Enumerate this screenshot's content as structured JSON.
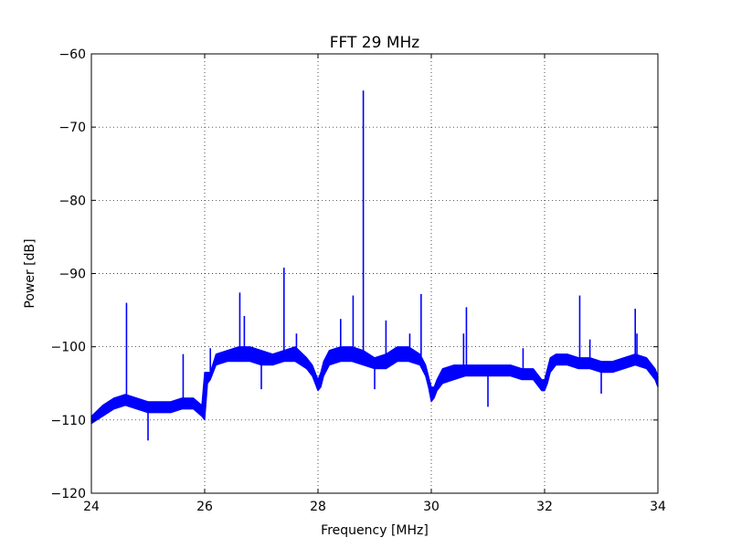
{
  "chart_data": {
    "type": "line",
    "title": "FFT 29 MHz",
    "xlabel": "Frequency [MHz]",
    "ylabel": "Power [dB]",
    "xlim": [
      24,
      34
    ],
    "ylim": [
      -120,
      -60
    ],
    "x_ticks": [
      24,
      26,
      28,
      30,
      32,
      34
    ],
    "x_tick_labels": [
      "24",
      "26",
      "28",
      "30",
      "32",
      "34"
    ],
    "y_ticks": [
      -120,
      -110,
      -100,
      -90,
      -80,
      -70,
      -60
    ],
    "y_tick_labels": [
      "−120",
      "−110",
      "−100",
      "−90",
      "−80",
      "−70",
      "−60"
    ],
    "grid": true,
    "grid_style": "dotted",
    "line_color": "#0000ff",
    "noise_band": {
      "x": [
        24.0,
        24.2,
        24.4,
        24.6,
        24.8,
        25.0,
        25.2,
        25.4,
        25.6,
        25.8,
        25.95,
        26.0,
        26.05,
        26.1,
        26.2,
        26.4,
        26.6,
        26.8,
        27.0,
        27.2,
        27.4,
        27.6,
        27.8,
        27.9,
        28.0,
        28.05,
        28.1,
        28.2,
        28.4,
        28.6,
        28.8,
        29.0,
        29.2,
        29.4,
        29.6,
        29.8,
        29.9,
        29.95,
        30.0,
        30.05,
        30.1,
        30.2,
        30.4,
        30.6,
        30.8,
        31.0,
        31.2,
        31.4,
        31.6,
        31.8,
        31.9,
        31.95,
        32.0,
        32.05,
        32.1,
        32.2,
        32.4,
        32.6,
        32.8,
        33.0,
        33.2,
        33.4,
        33.6,
        33.8,
        33.95,
        34.0
      ],
      "upper": [
        -109.5,
        -108,
        -107,
        -106.5,
        -107,
        -107.5,
        -107.5,
        -107.5,
        -107,
        -107,
        -108,
        -103.5,
        -103.5,
        -103.5,
        -101,
        -100.5,
        -100,
        -100,
        -100.5,
        -101,
        -100.5,
        -100,
        -101.5,
        -102.5,
        -104.5,
        -103.5,
        -102,
        -100.5,
        -100,
        -100,
        -100.5,
        -101.5,
        -101,
        -100,
        -100,
        -101,
        -102.5,
        -104,
        -105.5,
        -105.5,
        -104.5,
        -103,
        -102.5,
        -102.5,
        -102.5,
        -102.5,
        -102.5,
        -102.5,
        -103,
        -103,
        -104,
        -104.5,
        -104.5,
        -103,
        -101.5,
        -101,
        -101,
        -101.5,
        -101.5,
        -102,
        -102,
        -101.5,
        -101,
        -101.5,
        -103,
        -104
      ],
      "lower": [
        -110.5,
        -109.5,
        -108.5,
        -108,
        -108.5,
        -109,
        -109,
        -109,
        -108.5,
        -108.5,
        -109.5,
        -110,
        -105,
        -104.5,
        -102.5,
        -102,
        -102,
        -102,
        -102.5,
        -102.5,
        -102,
        -102,
        -103,
        -104,
        -106,
        -105.5,
        -104,
        -102.5,
        -102,
        -102,
        -102.5,
        -103,
        -103,
        -102,
        -102,
        -102.5,
        -104,
        -105.5,
        -107.5,
        -107,
        -106,
        -105,
        -104.5,
        -104,
        -104,
        -104,
        -104,
        -104,
        -104.5,
        -104.5,
        -105.5,
        -106,
        -106,
        -105,
        -103.5,
        -102.5,
        -102.5,
        -103,
        -103,
        -103.5,
        -103.5,
        -103,
        -102.5,
        -103,
        -104.5,
        -105.5
      ]
    },
    "spikes": {
      "x": [
        24.62,
        25.0,
        25.62,
        26.1,
        26.62,
        26.7,
        27.0,
        27.4,
        27.62,
        28.4,
        28.62,
        28.8,
        29.0,
        29.2,
        29.62,
        29.82,
        30.57,
        30.62,
        31.0,
        31.62,
        32.62,
        32.8,
        33.0,
        33.6,
        33.63
      ],
      "peak": [
        -94,
        -112.8,
        -101,
        -100.2,
        -92.6,
        -95.8,
        -105.8,
        -89.2,
        -98.2,
        -96.2,
        -93,
        -65,
        -105.8,
        -96.4,
        -98.2,
        -92.8,
        -98.2,
        -94.6,
        -108.2,
        -100.2,
        -93,
        -99,
        -106.4,
        -94.8,
        -98.2
      ]
    }
  }
}
